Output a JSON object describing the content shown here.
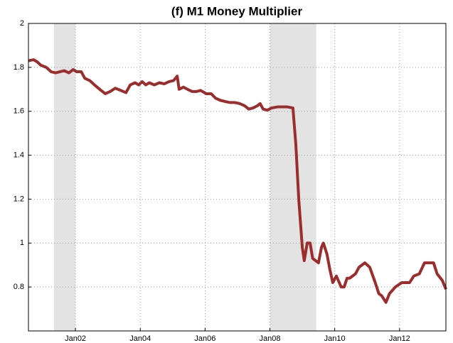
{
  "chart_data": {
    "type": "line",
    "title": "(f) M1 Money Multiplier",
    "x": [
      2000.55,
      2000.71,
      2000.82,
      2000.93,
      2001.1,
      2001.25,
      2001.39,
      2001.52,
      2001.65,
      2001.8,
      2001.93,
      2002.04,
      2002.18,
      2002.29,
      2002.44,
      2002.59,
      2002.75,
      2002.92,
      2003.07,
      2003.23,
      2003.4,
      2003.56,
      2003.69,
      2003.84,
      2003.95,
      2004.06,
      2004.17,
      2004.28,
      2004.43,
      2004.59,
      2004.74,
      2004.89,
      2005.03,
      2005.14,
      2005.2,
      2005.33,
      2005.46,
      2005.6,
      2005.73,
      2005.86,
      2006.04,
      2006.19,
      2006.32,
      2006.47,
      2006.61,
      2006.76,
      2006.91,
      2007.07,
      2007.22,
      2007.35,
      2007.48,
      2007.61,
      2007.7,
      2007.79,
      2007.92,
      2008.05,
      2008.23,
      2008.38,
      2008.54,
      2008.71,
      2008.8,
      2008.89,
      2009.0,
      2009.06,
      2009.15,
      2009.24,
      2009.32,
      2009.41,
      2009.5,
      2009.59,
      2009.65,
      2009.76,
      2009.85,
      2009.94,
      2010.05,
      2010.2,
      2010.29,
      2010.38,
      2010.46,
      2010.64,
      2010.75,
      2010.93,
      2011.08,
      2011.25,
      2011.36,
      2011.45,
      2011.58,
      2011.69,
      2011.87,
      2012.07,
      2012.22,
      2012.31,
      2012.44,
      2012.61,
      2012.77,
      2012.94,
      2013.05,
      2013.16,
      2013.32,
      2013.43
    ],
    "values": [
      1.83,
      1.835,
      1.825,
      1.81,
      1.8,
      1.78,
      1.775,
      1.78,
      1.785,
      1.775,
      1.79,
      1.78,
      1.78,
      1.75,
      1.74,
      1.72,
      1.7,
      1.68,
      1.69,
      1.705,
      1.695,
      1.685,
      1.72,
      1.73,
      1.72,
      1.735,
      1.72,
      1.73,
      1.72,
      1.73,
      1.725,
      1.735,
      1.74,
      1.76,
      1.7,
      1.71,
      1.7,
      1.69,
      1.69,
      1.695,
      1.68,
      1.68,
      1.66,
      1.65,
      1.645,
      1.64,
      1.64,
      1.635,
      1.625,
      1.61,
      1.615,
      1.625,
      1.635,
      1.61,
      1.605,
      1.615,
      1.62,
      1.62,
      1.62,
      1.615,
      1.45,
      1.2,
      0.98,
      0.92,
      1.0,
      1.0,
      0.93,
      0.92,
      0.91,
      0.98,
      1.0,
      0.95,
      0.88,
      0.82,
      0.85,
      0.8,
      0.8,
      0.84,
      0.84,
      0.86,
      0.89,
      0.91,
      0.89,
      0.82,
      0.77,
      0.76,
      0.73,
      0.77,
      0.8,
      0.82,
      0.82,
      0.82,
      0.85,
      0.86,
      0.91,
      0.91,
      0.91,
      0.86,
      0.83,
      0.79
    ],
    "color": "#9b2d2d",
    "shaded_regions": [
      [
        2001.34,
        2002.0
      ],
      [
        2008.0,
        2009.43
      ]
    ],
    "shade_color": "#e3e3e3",
    "xlim": [
      2000.55,
      2013.43
    ],
    "xticks": [
      {
        "value": 2002,
        "label": "Jan02"
      },
      {
        "value": 2004,
        "label": "Jan04"
      },
      {
        "value": 2006,
        "label": "Jan06"
      },
      {
        "value": 2008,
        "label": "Jan08"
      },
      {
        "value": 2010,
        "label": "Jan10"
      },
      {
        "value": 2012,
        "label": "Jan12"
      }
    ],
    "ylim": [
      0.6,
      2
    ],
    "yticks": [
      0.8,
      1,
      1.2,
      1.4,
      1.6,
      1.8,
      2
    ],
    "grid": true
  }
}
